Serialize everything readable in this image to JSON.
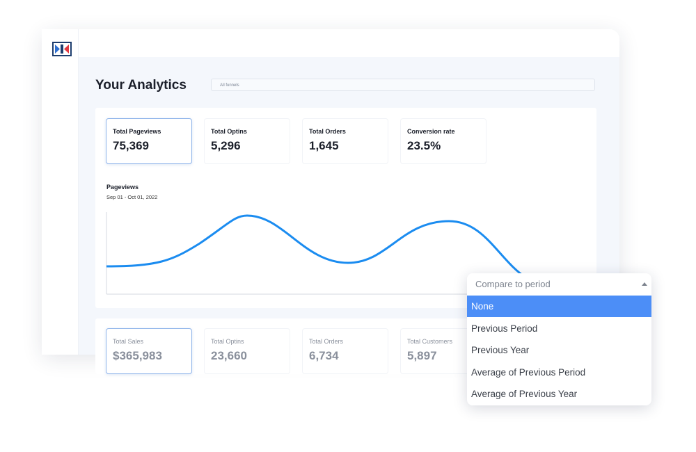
{
  "header": {
    "title": "Your Analytics",
    "funnel_select": "All funnels"
  },
  "stats": [
    {
      "label": "Total Pageviews",
      "value": "75,369"
    },
    {
      "label": "Total Optins",
      "value": "5,296"
    },
    {
      "label": "Total Orders",
      "value": "1,645"
    },
    {
      "label": "Conversion rate",
      "value": "23.5%"
    }
  ],
  "chart": {
    "title": "Pageviews",
    "date_range": "Sep 01 - Oct 01, 2022"
  },
  "stats2": [
    {
      "label": "Total Sales",
      "value": "$365,983"
    },
    {
      "label": "Total Optins",
      "value": "23,660"
    },
    {
      "label": "Total Orders",
      "value": "6,734"
    },
    {
      "label": "Total Customers",
      "value": "5,897"
    }
  ],
  "dropdown": {
    "placeholder": "Compare to period",
    "options": [
      "None",
      "Previous Period",
      "Previous Year",
      "Average of Previous Period",
      "Average of Previous Year"
    ]
  }
}
